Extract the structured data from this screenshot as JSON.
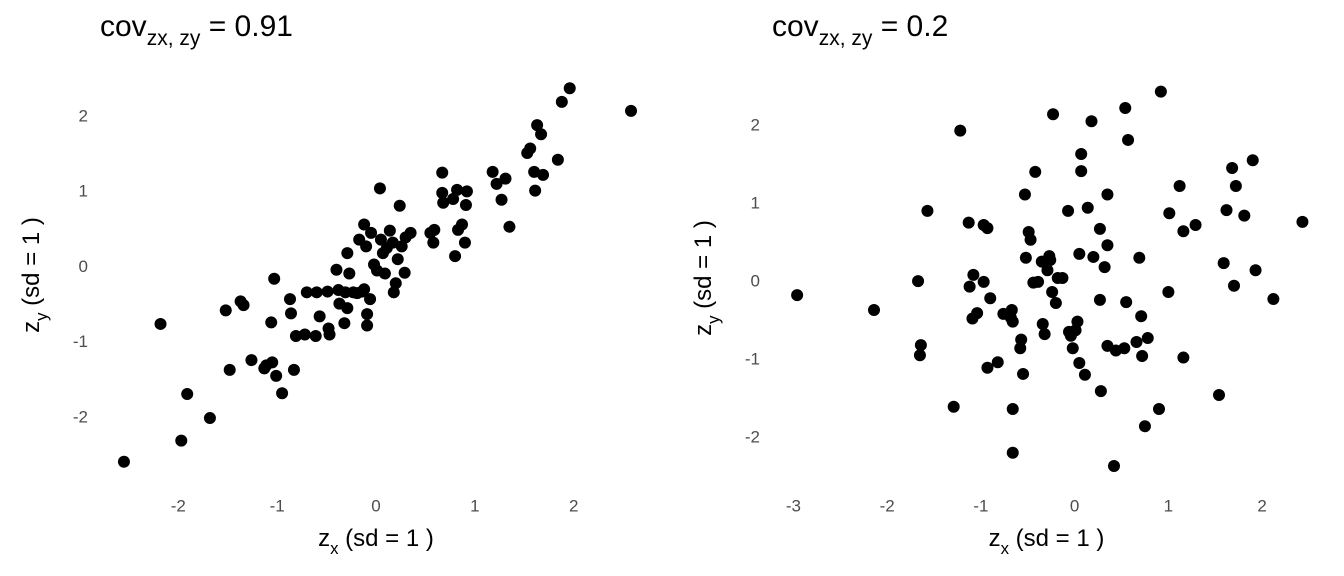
{
  "chart_data": [
    {
      "type": "scatter",
      "title": [
        "cov",
        "zx, zy",
        " = 0.91"
      ],
      "x_label": [
        "z",
        "x",
        " (sd =  1 )"
      ],
      "y_label": [
        "z",
        "y",
        " (sd =  1 )"
      ],
      "color": "#000000",
      "grid": false,
      "xlim": [
        -2.6,
        2.6
      ],
      "ylim": [
        -2.65,
        2.45
      ],
      "xticks": [
        -2,
        -1,
        0,
        1,
        2
      ],
      "yticks": [
        -2,
        -1,
        0,
        1,
        2
      ],
      "x": [
        -2.55,
        -2.18,
        -1.97,
        -1.91,
        -1.68,
        -1.52,
        -1.48,
        -1.37,
        -1.34,
        -1.26,
        -1.13,
        -1.11,
        -1.06,
        -1.03,
        -1.01,
        -1.05,
        -0.95,
        -0.87,
        -0.86,
        -0.83,
        -0.81,
        -0.72,
        -0.7,
        -0.6,
        -0.57,
        -0.61,
        -0.49,
        -0.48,
        -0.47,
        -0.4,
        -0.38,
        -0.37,
        -0.32,
        -0.31,
        -0.29,
        -0.27,
        -0.23,
        -0.19,
        -0.14,
        -0.12,
        -0.12,
        -0.1,
        -0.09,
        -0.09,
        -0.05,
        -0.06,
        -0.02,
        0.01,
        0.04,
        0.05,
        0.07,
        0.09,
        0.11,
        0.14,
        0.17,
        0.18,
        0.2,
        0.22,
        0.24,
        0.26,
        0.29,
        0.3,
        0.35,
        0.55,
        0.58,
        0.59,
        0.67,
        0.67,
        0.68,
        0.78,
        0.8,
        0.82,
        0.83,
        0.87,
        0.9,
        0.91,
        0.92,
        1.18,
        1.22,
        1.27,
        1.31,
        1.35,
        1.53,
        1.56,
        1.6,
        1.61,
        1.63,
        1.67,
        1.69,
        1.84,
        1.88,
        1.96,
        2.58,
        -0.17,
        -0.29
      ],
      "values": [
        -2.58,
        -0.75,
        -2.3,
        -1.68,
        -2.0,
        -0.57,
        -1.36,
        -0.45,
        -0.5,
        -1.23,
        -1.34,
        -1.3,
        -0.73,
        -0.15,
        -1.44,
        -1.26,
        -1.67,
        -0.42,
        -0.61,
        -1.36,
        -0.91,
        -0.89,
        -0.33,
        -0.33,
        -0.65,
        -0.91,
        -0.32,
        -0.81,
        -0.89,
        -0.03,
        -0.3,
        -0.48,
        -0.74,
        -0.33,
        0.19,
        -0.08,
        -0.33,
        -0.34,
        -0.32,
        -0.29,
        0.57,
        0.28,
        -0.62,
        -0.77,
        0.46,
        -0.42,
        0.04,
        -0.04,
        1.05,
        0.37,
        0.19,
        -0.08,
        0.26,
        0.49,
        0.33,
        -0.33,
        -0.21,
        0.11,
        0.82,
        0.28,
        -0.07,
        0.4,
        0.46,
        0.46,
        0.33,
        0.5,
        1.26,
        0.99,
        0.86,
        0.91,
        0.15,
        1.03,
        0.5,
        0.57,
        0.33,
        0.83,
        1.01,
        1.27,
        1.11,
        0.9,
        1.18,
        0.54,
        1.52,
        1.58,
        1.27,
        1.02,
        1.89,
        1.77,
        1.23,
        1.43,
        2.2,
        2.38,
        2.08,
        0.37,
        -0.54
      ]
    },
    {
      "type": "scatter",
      "title": [
        "cov",
        "zx, zy",
        " = 0.2"
      ],
      "x_label": [
        "z",
        "x",
        " (sd =  1 )"
      ],
      "y_label": [
        "z",
        "y",
        " (sd =  1 )"
      ],
      "color": "#000000",
      "grid": false,
      "xlim": [
        -3.1,
        2.5
      ],
      "ylim": [
        -2.45,
        2.55
      ],
      "xticks": [
        -3,
        -2,
        -1,
        0,
        1,
        2
      ],
      "yticks": [
        -2,
        -1,
        0,
        1,
        2
      ],
      "x": [
        -2.96,
        -2.14,
        -1.67,
        -1.64,
        -1.65,
        -1.57,
        -1.29,
        -1.22,
        -1.13,
        -1.12,
        -1.09,
        -1.08,
        -1.04,
        -0.97,
        -0.93,
        -0.97,
        -0.93,
        -0.9,
        -0.82,
        -0.76,
        -0.68,
        -0.67,
        -0.66,
        -0.66,
        -0.66,
        -0.58,
        -0.57,
        -0.55,
        -0.53,
        -0.52,
        -0.49,
        -0.47,
        -0.44,
        -0.42,
        -0.39,
        -0.35,
        -0.34,
        -0.32,
        -0.29,
        -0.27,
        -0.26,
        -0.24,
        -0.23,
        -0.2,
        -0.18,
        -0.13,
        -0.07,
        -0.06,
        -0.04,
        -0.02,
        0.01,
        0.03,
        0.05,
        0.07,
        0.07,
        0.05,
        0.11,
        0.14,
        0.18,
        0.2,
        0.27,
        0.27,
        0.28,
        0.32,
        0.35,
        0.35,
        0.35,
        0.44,
        0.42,
        0.53,
        0.54,
        0.55,
        0.57,
        0.69,
        0.66,
        0.71,
        0.72,
        0.75,
        0.78,
        0.9,
        0.92,
        1.0,
        1.01,
        1.12,
        1.16,
        1.16,
        1.29,
        1.54,
        1.59,
        1.62,
        1.68,
        1.7,
        1.72,
        1.81,
        1.9,
        1.93,
        2.12,
        2.43
      ],
      "values": [
        -0.17,
        -0.36,
        0.01,
        -0.81,
        -0.94,
        0.91,
        -1.6,
        1.94,
        0.76,
        -0.06,
        -0.47,
        0.09,
        -0.4,
        0.73,
        0.69,
        0.0,
        -1.1,
        -0.21,
        -1.03,
        -0.41,
        -0.46,
        -0.36,
        -0.51,
        -1.63,
        -2.19,
        -0.85,
        -0.74,
        -1.18,
        1.12,
        0.31,
        0.64,
        0.54,
        -0.01,
        1.41,
        0.0,
        0.26,
        -0.54,
        -0.67,
        0.15,
        0.33,
        0.28,
        -0.13,
        2.15,
        -0.27,
        0.05,
        0.05,
        0.91,
        -0.64,
        -0.69,
        -0.85,
        -0.62,
        -0.51,
        0.36,
        1.64,
        1.42,
        -1.04,
        -1.19,
        0.95,
        2.06,
        0.32,
        0.68,
        -0.23,
        -1.4,
        0.19,
        0.47,
        1.12,
        -0.82,
        -0.88,
        -2.36,
        -0.85,
        2.23,
        -0.26,
        1.82,
        0.31,
        -0.77,
        -0.44,
        -0.95,
        -1.85,
        -0.72,
        -1.63,
        2.44,
        -0.13,
        0.88,
        1.23,
        0.65,
        -0.97,
        0.73,
        -1.45,
        0.24,
        0.92,
        1.46,
        -0.05,
        1.23,
        0.85,
        1.56,
        0.15,
        -0.22,
        0.77
      ]
    }
  ]
}
